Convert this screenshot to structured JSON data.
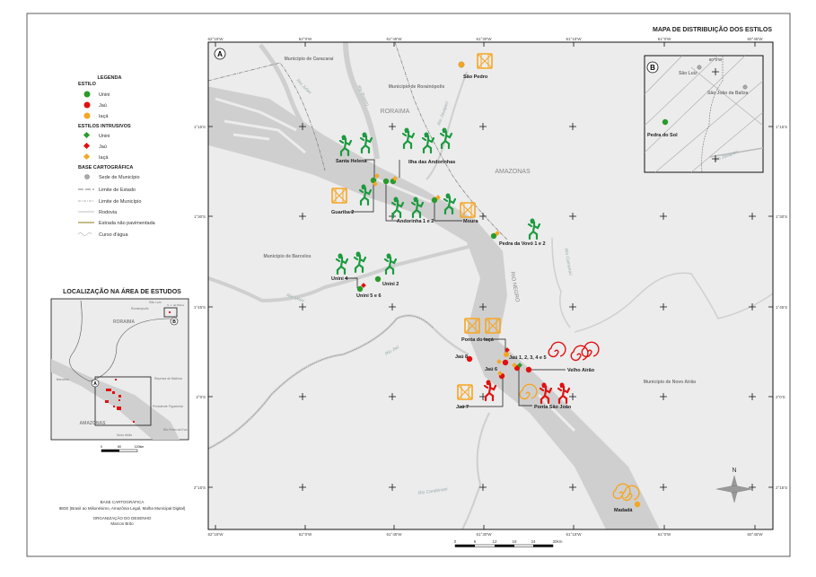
{
  "title": "MAPA DE DISTRIBUIÇÃO DOS ESTILOS",
  "colors": {
    "unini": "#2a9a2a",
    "jau": "#e01010",
    "iaca": "#f5a623",
    "water": "#cfcfcf",
    "land": "#ececec"
  },
  "legend": {
    "title": "LEGENDA",
    "estilo_heading": "ESTILO",
    "estilo": [
      "Unini",
      "Jaú",
      "Iaçá"
    ],
    "intrusivos_heading": "ESTILOS INTRUSIVOS",
    "intrusivos": [
      "Unini",
      "Jaú",
      "Iaçá"
    ],
    "base_heading": "BASE CARTOGRÁFICA",
    "base": [
      "Sede de Município",
      "Limite de Estado",
      "Limite de Município",
      "Rodovia",
      "Estrada não pavimentada",
      "Curso d'água"
    ]
  },
  "locator": {
    "title": "LOCALIZAÇÃO NA ÁREA DE ESTUDOS",
    "labels": [
      "RORAIMA",
      "AMAZONAS",
      "Barcelos",
      "Rorainópolis",
      "São Luiz",
      "S. J. da Baliza",
      "Represa de Balbina",
      "Presidente Figueiredo",
      "Novo Airão",
      "Rio Preto da Eva"
    ],
    "markers": [
      "A",
      "B"
    ],
    "scale": [
      "0",
      "60",
      "120km"
    ]
  },
  "credits": {
    "base_heading": "BASE CARTOGRÁFICA",
    "base_text": "IBGE (Brasil ao Milionésimo, Amazônia Legal, Malha Municipal Digital)",
    "org_heading": "ORGANIZAÇÃO DO DESENHO",
    "org_name": "Marcos Brito"
  },
  "map_a": {
    "marker": "A",
    "lon_labels": [
      "62°15'W",
      "62°0'W",
      "61°45'W",
      "61°30'W",
      "61°15'W",
      "61°0'W",
      "60°45'W"
    ],
    "lat_labels": [
      "1°15'S",
      "1°30'S",
      "1°45'S",
      "2°0'S",
      "2°15'S"
    ],
    "regions": [
      "RORAIMA",
      "AMAZONAS",
      "RIO NEGRO"
    ],
    "municipios": [
      "Município de Caracaraí",
      "Município de Rorainópolis",
      "Município de Barcelos",
      "Município de Novo Airão"
    ],
    "rivers": [
      "Rio Jufari",
      "Rio Branco",
      "Rio Jauaperi",
      "Rio Unini",
      "Rio Jaú",
      "Rio Camanaú",
      "Rio Carabinani"
    ],
    "sites": [
      "São Pedro",
      "Santa Helena",
      "Ilha das Andorinhas",
      "Guariba 2",
      "Andorinha 1 e 2",
      "Moura",
      "Pedra da Vovó 1 e 2",
      "Unini 4",
      "Unini 2",
      "Unini 5 e 6",
      "Ponta do Iaçá",
      "Jaú 8",
      "Jaú 1, 2, 3, 4 e 5",
      "Jaú 6",
      "Velho Airão",
      "Jaú 7",
      "Ponta São João",
      "Madadá"
    ],
    "scale": [
      "0",
      "6",
      "12",
      "18",
      "24",
      "30km"
    ],
    "north": "N"
  },
  "map_b": {
    "marker": "B",
    "lon_label": "60°0'W",
    "towns": [
      "São Luiz",
      "São João da Baliza"
    ],
    "river": "Rio Jauaperi",
    "site": "Pedra do Sol"
  }
}
